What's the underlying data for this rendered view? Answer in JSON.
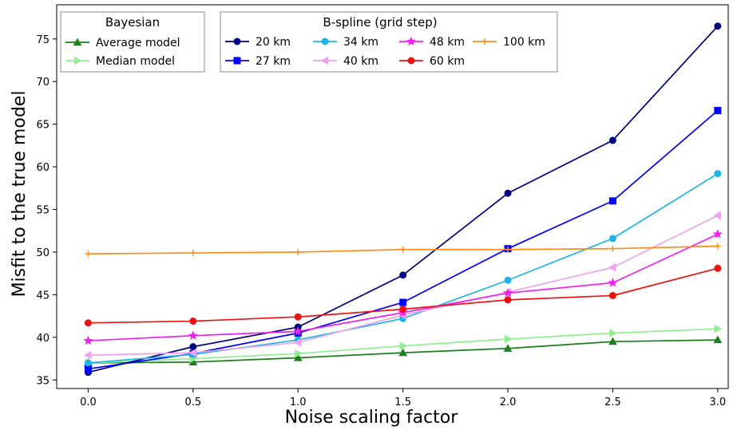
{
  "chart_data": {
    "type": "line",
    "xlabel": "Noise scaling factor",
    "ylabel": "Misfit to the true model",
    "xlim": [
      -0.15,
      3.05
    ],
    "ylim": [
      34,
      79
    ],
    "x_ticks": [
      "0.0",
      "0.5",
      "1.0",
      "1.5",
      "2.0",
      "2.5",
      "3.0"
    ],
    "y_ticks": [
      "35",
      "40",
      "45",
      "50",
      "55",
      "60",
      "65",
      "70",
      "75"
    ],
    "grid": false,
    "x": [
      0.0,
      0.5,
      1.0,
      1.5,
      2.0,
      2.5,
      3.0
    ],
    "legends": [
      {
        "title": "Bayesian",
        "placement": "top-left",
        "entries": [
          "Average model",
          "Median model"
        ]
      },
      {
        "title": "B-spline (grid step)",
        "placement": "top-center",
        "entries": [
          "20 km",
          "27 km",
          "34 km",
          "40 km",
          "48 km",
          "60 km",
          "100 km"
        ]
      }
    ],
    "series": [
      {
        "name": "Average model",
        "color": "#1a7f1a",
        "marker": "triangle-up",
        "values": [
          37.0,
          37.1,
          37.6,
          38.2,
          38.7,
          39.5,
          39.7
        ]
      },
      {
        "name": "Median model",
        "color": "#90ee90",
        "marker": "triangle-right",
        "values": [
          37.0,
          37.5,
          38.1,
          39.0,
          39.8,
          40.5,
          41.0
        ]
      },
      {
        "name": "20 km",
        "color": "#000080",
        "marker": "circle",
        "values": [
          35.9,
          38.9,
          41.2,
          47.3,
          56.9,
          63.1,
          76.5
        ]
      },
      {
        "name": "27 km",
        "color": "#0000ff",
        "marker": "square",
        "values": [
          36.3,
          38.1,
          40.5,
          44.1,
          50.4,
          56.0,
          66.6
        ]
      },
      {
        "name": "34 km",
        "color": "#1eb4e8",
        "marker": "circle",
        "values": [
          37.0,
          38.0,
          39.7,
          42.2,
          46.7,
          51.6,
          59.2
        ]
      },
      {
        "name": "40 km",
        "color": "#eea2ee",
        "marker": "triangle-left",
        "values": [
          37.9,
          38.2,
          39.4,
          42.6,
          45.3,
          48.2,
          54.3
        ]
      },
      {
        "name": "48 km",
        "color": "#ee22ee",
        "marker": "star",
        "values": [
          39.6,
          40.2,
          40.7,
          42.9,
          45.2,
          46.4,
          52.1
        ]
      },
      {
        "name": "60 km",
        "color": "#ee1111",
        "marker": "circle",
        "values": [
          41.7,
          41.9,
          42.4,
          43.3,
          44.4,
          44.9,
          48.1
        ]
      },
      {
        "name": "100 km",
        "color": "#ff8c1a",
        "marker": "plus",
        "values": [
          49.8,
          49.9,
          50.0,
          50.3,
          50.3,
          50.4,
          50.7
        ]
      }
    ]
  }
}
